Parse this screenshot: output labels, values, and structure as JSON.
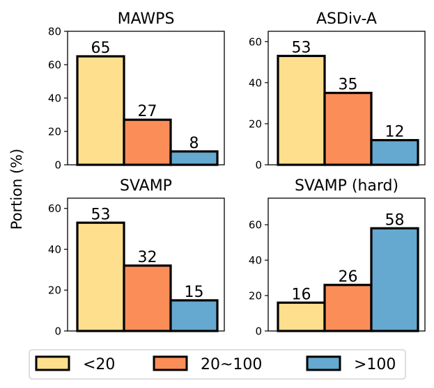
{
  "ylabel": "Portion (%)",
  "colors": {
    "<20": "#fddf8e",
    "20~100": "#fb8d58",
    ">100": "#65a8d0",
    "edge": "#000000"
  },
  "legend": {
    "placement": "bottom-center",
    "entries": [
      "<20",
      "20~100",
      ">100"
    ]
  },
  "chart_data": [
    {
      "type": "bar",
      "title": "MAWPS",
      "categories": [
        "<20",
        "20~100",
        ">100"
      ],
      "values": [
        65,
        27,
        8
      ],
      "ylim": [
        0,
        80
      ],
      "yticks": [
        0,
        20,
        40,
        60,
        80
      ],
      "xlabel": "",
      "ylabel": "Portion (%)"
    },
    {
      "type": "bar",
      "title": "ASDiv-A",
      "categories": [
        "<20",
        "20~100",
        ">100"
      ],
      "values": [
        53,
        35,
        12
      ],
      "ylim": [
        0,
        65
      ],
      "yticks": [
        0,
        20,
        40,
        60
      ],
      "xlabel": "",
      "ylabel": "Portion (%)"
    },
    {
      "type": "bar",
      "title": "SVAMP",
      "categories": [
        "<20",
        "20~100",
        ">100"
      ],
      "values": [
        53,
        32,
        15
      ],
      "ylim": [
        0,
        65
      ],
      "yticks": [
        0,
        20,
        40,
        60
      ],
      "xlabel": "",
      "ylabel": "Portion (%)"
    },
    {
      "type": "bar",
      "title": "SVAMP (hard)",
      "categories": [
        "<20",
        "20~100",
        ">100"
      ],
      "values": [
        16,
        26,
        58
      ],
      "ylim": [
        0,
        75
      ],
      "yticks": [
        0,
        20,
        40,
        60
      ],
      "xlabel": "",
      "ylabel": "Portion (%)"
    }
  ]
}
